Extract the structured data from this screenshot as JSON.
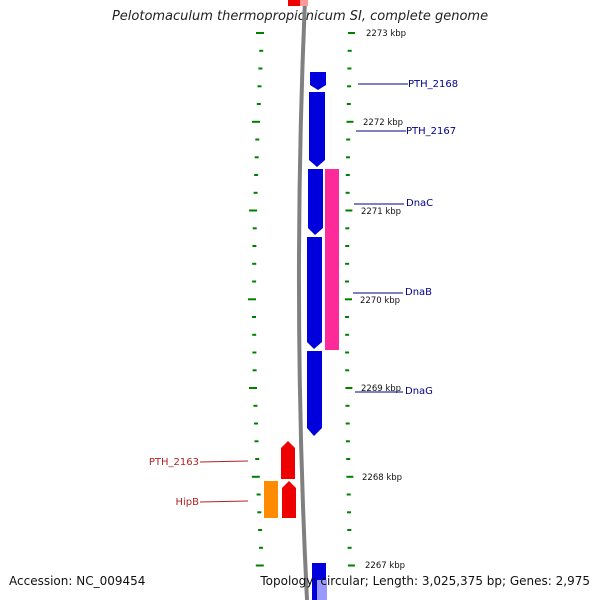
{
  "title": "Pelotomaculum thermopropionicum SI, complete genome",
  "footer": {
    "accession": "Accession: NC_009454",
    "topology": "Topology: circular; Length: 3,025,375 bp; Genes: 2,975"
  },
  "colors": {
    "forward_gene": "#0000dd",
    "reverse_gene": "#ee0000",
    "pink_gene": "#ff2a9a",
    "orange_gene": "#ff8c00",
    "tick": "#008000",
    "backbone": "#808080",
    "forward_label": "#00008b",
    "reverse_label": "#b22222"
  },
  "scale": {
    "labels": [
      "2273 kbp",
      "2272 kbp",
      "2271 kbp",
      "2270 kbp",
      "2269 kbp",
      "2268 kbp",
      "2267 kbp"
    ]
  },
  "genes": {
    "forward": [
      "PTH_2168",
      "PTH_2167",
      "DnaC",
      "DnaB",
      "DnaG"
    ],
    "reverse": [
      "PTH_2163",
      "HipB"
    ]
  }
}
